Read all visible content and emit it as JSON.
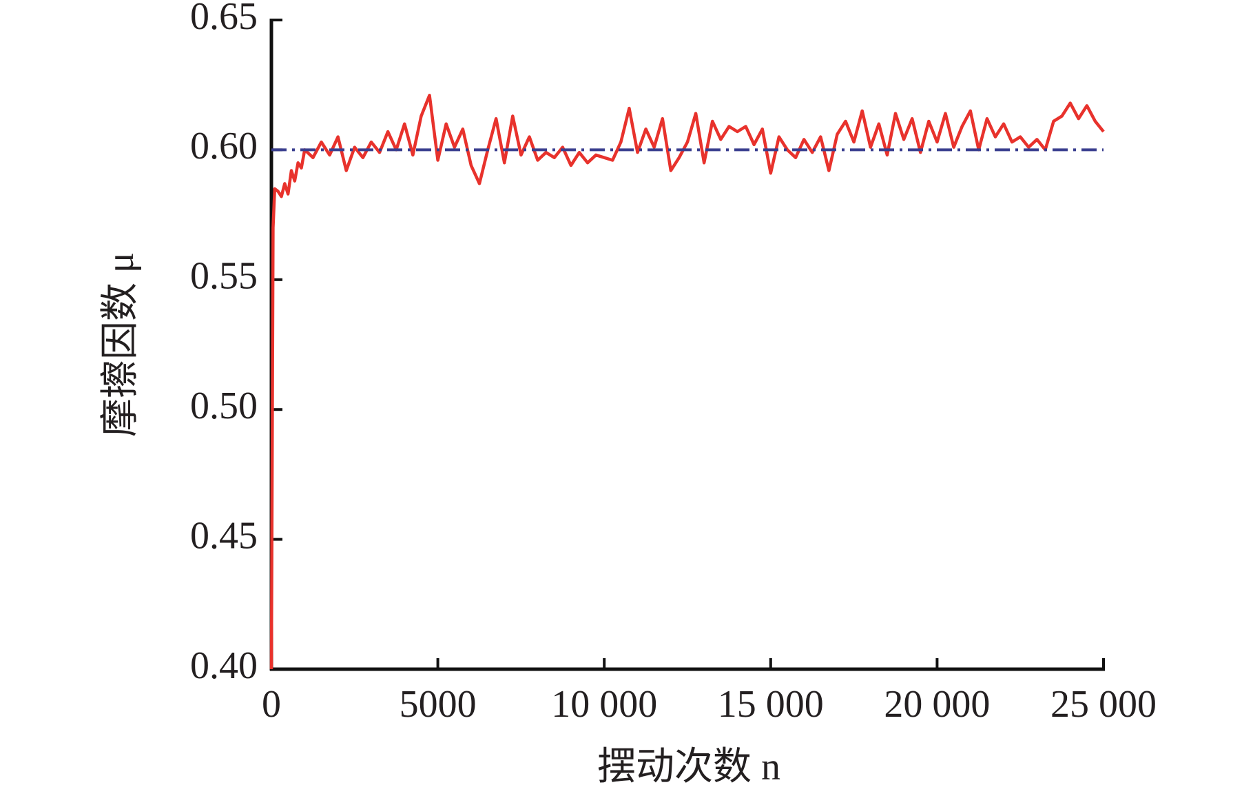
{
  "chart_data": {
    "type": "line",
    "xlabel": "摆动次数 n",
    "ylabel": "摩擦因数 μ",
    "xlim": [
      0,
      25000
    ],
    "xticks": [
      0,
      5000,
      {
        "value": 10000,
        "label": "10 000"
      },
      {
        "value": 15000,
        "label": "15 000"
      },
      {
        "value": 20000,
        "label": "20 000"
      },
      {
        "value": 25000,
        "label": "25 000"
      }
    ],
    "ylim": [
      0.4,
      0.65
    ],
    "yticks": [
      {
        "value": 0.4,
        "label": "0.40"
      },
      {
        "value": 0.45,
        "label": "0.45"
      },
      {
        "value": 0.5,
        "label": "0.50"
      },
      {
        "value": 0.55,
        "label": "0.55"
      },
      {
        "value": 0.6,
        "label": "0.60"
      },
      {
        "value": 0.65,
        "label": "0.65"
      }
    ],
    "grid": false,
    "series": [
      {
        "color": "#e8322c",
        "style": "solid",
        "x": [
          0,
          50,
          100,
          200,
          300,
          400,
          500,
          600,
          700,
          800,
          900,
          1000,
          1250,
          1500,
          1750,
          2000,
          2250,
          2500,
          2750,
          3000,
          3250,
          3500,
          3750,
          4000,
          4250,
          4500,
          4750,
          5000,
          5250,
          5500,
          5750,
          6000,
          6250,
          6500,
          6750,
          7000,
          7250,
          7500,
          7750,
          8000,
          8250,
          8500,
          8750,
          9000,
          9250,
          9500,
          9750,
          10000,
          10250,
          10500,
          10750,
          11000,
          11250,
          11500,
          11750,
          12000,
          12250,
          12500,
          12750,
          13000,
          13250,
          13500,
          13750,
          14000,
          14250,
          14500,
          14750,
          15000,
          15250,
          15500,
          15750,
          16000,
          16250,
          16500,
          16750,
          17000,
          17250,
          17500,
          17750,
          18000,
          18250,
          18500,
          18750,
          19000,
          19250,
          19500,
          19750,
          20000,
          20250,
          20500,
          20750,
          21000,
          21250,
          21500,
          21750,
          22000,
          22250,
          22500,
          22750,
          23000,
          23250,
          23500,
          23750,
          24000,
          24250,
          24500,
          24750,
          25000
        ],
        "values": [
          0.4,
          0.57,
          0.585,
          0.584,
          0.582,
          0.587,
          0.583,
          0.592,
          0.588,
          0.595,
          0.593,
          0.6,
          0.597,
          0.603,
          0.598,
          0.605,
          0.592,
          0.601,
          0.597,
          0.603,
          0.599,
          0.607,
          0.6,
          0.61,
          0.598,
          0.613,
          0.621,
          0.596,
          0.61,
          0.601,
          0.608,
          0.594,
          0.587,
          0.6,
          0.612,
          0.595,
          0.613,
          0.598,
          0.605,
          0.596,
          0.599,
          0.597,
          0.601,
          0.594,
          0.599,
          0.595,
          0.598,
          0.597,
          0.596,
          0.603,
          0.616,
          0.599,
          0.608,
          0.601,
          0.612,
          0.592,
          0.597,
          0.603,
          0.614,
          0.595,
          0.611,
          0.604,
          0.609,
          0.607,
          0.609,
          0.602,
          0.608,
          0.591,
          0.605,
          0.6,
          0.597,
          0.604,
          0.599,
          0.605,
          0.592,
          0.606,
          0.611,
          0.603,
          0.615,
          0.601,
          0.61,
          0.598,
          0.614,
          0.604,
          0.612,
          0.599,
          0.611,
          0.603,
          0.614,
          0.601,
          0.609,
          0.615,
          0.6,
          0.612,
          0.605,
          0.61,
          0.603,
          0.605,
          0.601,
          0.604,
          0.6,
          0.611,
          0.613,
          0.618,
          0.612,
          0.617,
          0.611,
          0.607
        ]
      },
      {
        "color": "#3a3f8f",
        "style": "dashdot",
        "x": [
          0,
          25000
        ],
        "values": [
          0.6,
          0.6
        ]
      }
    ]
  }
}
